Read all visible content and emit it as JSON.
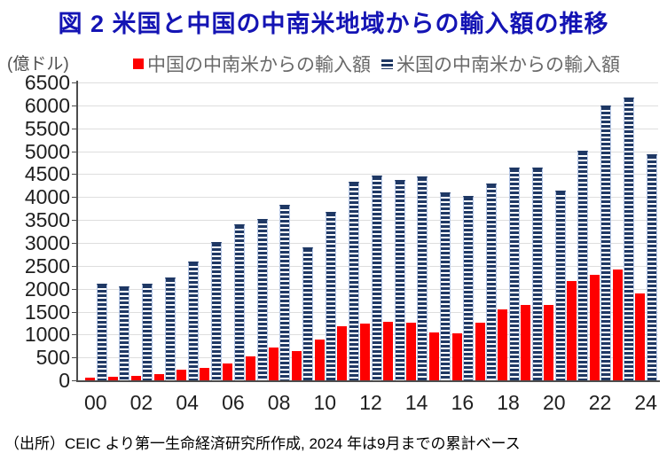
{
  "title": "図 2  米国と中国の中南米地域からの輸入額の推移",
  "unit_label": "(億ドル)",
  "legend": {
    "china_label": "中国の中南米からの輸入額",
    "us_label": "米国の中南米からの輸入額"
  },
  "caption": "（出所）CEIC より第一生命経済研究所作成, 2024 年は9月までの累計ベース",
  "colors": {
    "title_text": "#1414b4",
    "china_bar": "#fe0000",
    "us_bar": "#1f3864",
    "us_bar_stripe": "#ffffff",
    "us_bar_outline": "#b8c9e8",
    "gridline": "#dedede",
    "axis": "#4d4d4d",
    "tick_text": "#1f1f1f",
    "legend_text": "#696969"
  },
  "chart_data": {
    "type": "bar",
    "title": "図 2  米国と中国の中南米地域からの輸入額の推移",
    "ylabel": "(億ドル)",
    "ylim": [
      0,
      6500
    ],
    "ytick_step": 500,
    "grid": true,
    "legend_position": "top",
    "x": [
      "2000",
      "2001",
      "2002",
      "2003",
      "2004",
      "2005",
      "2006",
      "2007",
      "2008",
      "2009",
      "2010",
      "2011",
      "2012",
      "2013",
      "2014",
      "2015",
      "2016",
      "2017",
      "2018",
      "2019",
      "2020",
      "2021",
      "2022",
      "2023",
      "2024"
    ],
    "x_tick_labels": [
      "00",
      "02",
      "04",
      "06",
      "08",
      "10",
      "12",
      "14",
      "16",
      "18",
      "20",
      "22",
      "24"
    ],
    "series": [
      {
        "name": "中国の中南米からの輸入額",
        "color": "#fe0000",
        "values": [
          60,
          70,
          90,
          140,
          230,
          280,
          360,
          520,
          720,
          630,
          900,
          1190,
          1230,
          1270,
          1250,
          1040,
          1030,
          1250,
          1550,
          1640,
          1640,
          2160,
          2310,
          2410,
          1890
        ]
      },
      {
        "name": "米国の中南米からの輸入額",
        "color": "#1f3864",
        "values": [
          2100,
          2050,
          2100,
          2250,
          2600,
          3020,
          3400,
          3530,
          3840,
          2900,
          3680,
          4330,
          4470,
          4380,
          4450,
          4100,
          4020,
          4290,
          4640,
          4650,
          4140,
          5020,
          6000,
          6180,
          4940
        ]
      }
    ]
  }
}
